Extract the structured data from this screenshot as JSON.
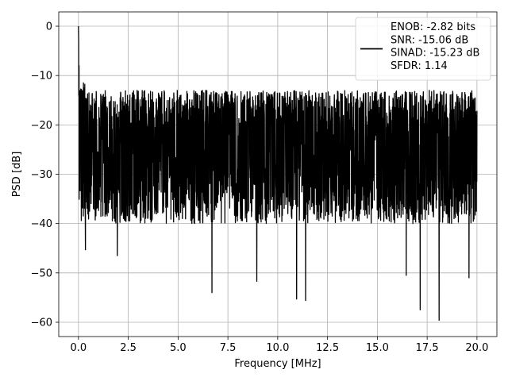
{
  "chart_data": {
    "type": "line",
    "title": "",
    "xlabel": "Frequency [MHz]",
    "ylabel": "PSD [dB]",
    "xlim": [
      -0.99,
      21.0
    ],
    "ylim": [
      -62.9,
      2.9
    ],
    "xticks": [
      0.0,
      2.5,
      5.0,
      7.5,
      10.0,
      12.5,
      15.0,
      17.5,
      20.0
    ],
    "xtick_labels": [
      "0.0",
      "2.5",
      "5.0",
      "7.5",
      "10.0",
      "12.5",
      "15.0",
      "17.5",
      "20.0"
    ],
    "yticks": [
      0,
      -10,
      -20,
      -30,
      -40,
      -50,
      -60
    ],
    "ytick_labels": [
      "0",
      "−10",
      "−20",
      "−30",
      "−40",
      "−50",
      "−60"
    ],
    "grid": true,
    "legend_position": "top-right",
    "legend": [
      "ENOB: -2.82 bits",
      "SNR: -15.06 dB",
      "SINAD: -15.23 dB",
      "SFDR: 1.14"
    ],
    "series": [
      {
        "color": "#000000",
        "x_range": [
          0.0,
          20.0
        ],
        "peak": {
          "x": 0.0,
          "y": 0.0
        },
        "noise_floor_mean_db": -25,
        "noise_envelope_upper_db": -13,
        "noise_envelope_lower_db": -40,
        "notable_minima": [
          {
            "x": 0.35,
            "y": -45.3
          },
          {
            "x": 1.95,
            "y": -46.5
          },
          {
            "x": 6.7,
            "y": -54.0
          },
          {
            "x": 8.95,
            "y": -51.7
          },
          {
            "x": 10.95,
            "y": -55.3
          },
          {
            "x": 11.4,
            "y": -55.6
          },
          {
            "x": 16.45,
            "y": -50.5
          },
          {
            "x": 17.15,
            "y": -57.5
          },
          {
            "x": 18.1,
            "y": -59.6
          },
          {
            "x": 19.6,
            "y": -51.0
          }
        ]
      }
    ]
  }
}
